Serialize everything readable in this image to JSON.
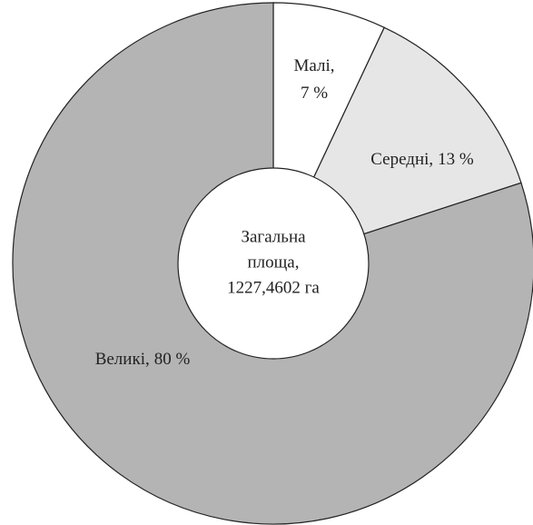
{
  "chart_data": {
    "type": "donut",
    "categories": [
      "Малі,",
      "Середні,",
      "Великі,"
    ],
    "values": [
      7,
      13,
      80
    ],
    "value_labels": [
      "7 %",
      "13 %",
      "80 %"
    ],
    "colors": [
      "#ffffff",
      "#e6e6e6",
      "#b4b4b4"
    ],
    "center_label": [
      "Загальна",
      "площа,",
      "1227,4602 га"
    ]
  }
}
